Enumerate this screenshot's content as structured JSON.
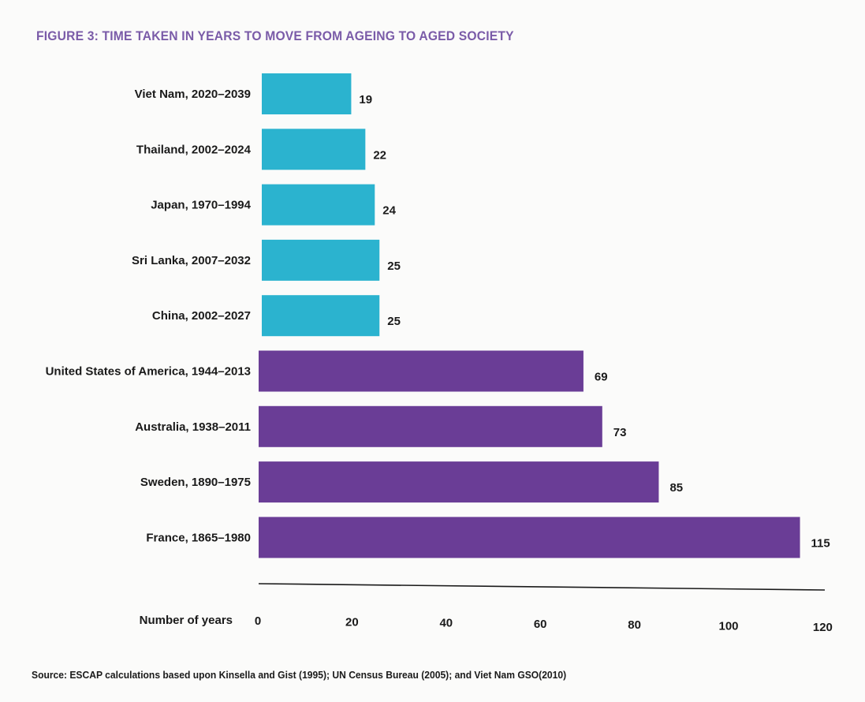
{
  "title": "FIGURE 3: TIME TAKEN IN YEARS TO MOVE FROM AGEING TO AGED SOCIETY",
  "source": "Source: ESCAP calculations based upon Kinsella and Gist (1995); UN Census Bureau (2005); and Viet Nam GSO(2010)",
  "colors": {
    "asia": "#2bb3cf",
    "other": "#6a3d96",
    "title": "#7a5ba8"
  },
  "chart_data": {
    "type": "bar",
    "orientation": "horizontal",
    "title": "FIGURE 3: TIME TAKEN IN YEARS TO MOVE FROM AGEING TO AGED SOCIETY",
    "xlabel": "Number of years",
    "ylabel": "",
    "xlim": [
      0,
      120
    ],
    "xticks": [
      "0",
      "20",
      "40",
      "60",
      "80",
      "100",
      "120"
    ],
    "grid": false,
    "categories": [
      "Viet Nam, 2020–2039",
      "Thailand, 2002–2024",
      "Japan, 1970–1994",
      "Sri Lanka, 2007–2032",
      "China, 2002–2027",
      "United States of America, 1944–2013",
      "Australia, 1938–2011",
      "Sweden, 1890–1975",
      "France, 1865–1980"
    ],
    "values": [
      19,
      22,
      24,
      25,
      25,
      69,
      73,
      85,
      115
    ],
    "value_labels": [
      "19",
      "22",
      "24",
      "25",
      "25",
      "69",
      "73",
      "85",
      "115"
    ],
    "bar_colors": [
      "asia",
      "asia",
      "asia",
      "asia",
      "asia",
      "other",
      "other",
      "other",
      "other"
    ]
  }
}
